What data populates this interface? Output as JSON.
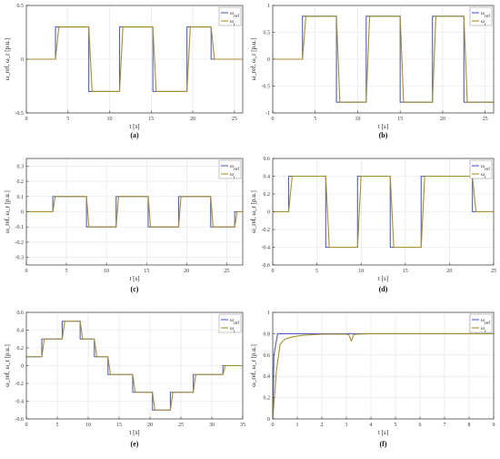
{
  "figure": {
    "subplots": [
      {
        "id": "a",
        "caption": "(a)"
      },
      {
        "id": "b",
        "caption": "(b)"
      },
      {
        "id": "c",
        "caption": "(c)"
      },
      {
        "id": "d",
        "caption": "(d)"
      },
      {
        "id": "e",
        "caption": "(e)"
      },
      {
        "id": "f",
        "caption": "(f)"
      }
    ]
  },
  "colors": {
    "omega_ref": "#4f5fc8",
    "omega_r": "#a88e2c",
    "grid": "#e3e3e3",
    "axis": "#333333"
  },
  "chart_data": [
    {
      "id": "a",
      "type": "line",
      "caption": "(a)",
      "xlabel": "t [s]",
      "ylabel": "ω_ref, ω_r [p.u.]",
      "xlim": [
        0,
        26
      ],
      "ylim": [
        -0.5,
        0.5
      ],
      "xticks": [
        0,
        5,
        10,
        15,
        20,
        25
      ],
      "yticks": [
        -0.5,
        0,
        0.5
      ],
      "grid": true,
      "legend_position": "top-right",
      "series": [
        {
          "name": "ω_ref",
          "x": [
            0,
            3.5,
            3.5,
            7.5,
            7.5,
            11.2,
            11.2,
            15.2,
            15.2,
            19.3,
            19.3,
            22.2,
            22.2,
            26
          ],
          "values": [
            0,
            0,
            0.3,
            0.3,
            -0.3,
            -0.3,
            0.3,
            0.3,
            -0.3,
            -0.3,
            0.3,
            0.3,
            0,
            0
          ]
        },
        {
          "name": "ω_r",
          "x": [
            0,
            3.5,
            3.9,
            7.5,
            7.9,
            11.2,
            11.6,
            15.2,
            15.6,
            19.3,
            19.7,
            22.2,
            22.6,
            26
          ],
          "values": [
            0,
            0,
            0.3,
            0.3,
            -0.3,
            -0.3,
            0.3,
            0.3,
            -0.3,
            -0.3,
            0.3,
            0.3,
            0,
            0
          ]
        }
      ]
    },
    {
      "id": "b",
      "type": "line",
      "caption": "(b)",
      "xlabel": "t [s]",
      "ylabel": "ω_ref, ω_r [p.u.]",
      "xlim": [
        0,
        26
      ],
      "ylim": [
        -1,
        1
      ],
      "xticks": [
        0,
        5,
        10,
        15,
        20,
        25
      ],
      "yticks": [
        -1,
        -0.5,
        0,
        0.5,
        1
      ],
      "grid": true,
      "legend_position": "top-right",
      "series": [
        {
          "name": "ω_ref",
          "x": [
            0,
            3.5,
            3.5,
            7.5,
            7.5,
            11,
            11,
            15,
            15,
            18.8,
            18.8,
            22.5,
            22.5,
            26
          ],
          "values": [
            0,
            0,
            0.8,
            0.8,
            -0.8,
            -0.8,
            0.8,
            0.8,
            -0.8,
            -0.8,
            0.8,
            0.8,
            -0.8,
            -0.8
          ]
        },
        {
          "name": "ω_r",
          "x": [
            0,
            3.5,
            3.9,
            7.5,
            7.9,
            11,
            11.4,
            15,
            15.4,
            18.8,
            19.2,
            22.5,
            22.9,
            26
          ],
          "values": [
            0,
            0,
            0.8,
            0.8,
            -0.8,
            -0.8,
            0.8,
            0.8,
            -0.8,
            -0.8,
            0.8,
            0.8,
            -0.8,
            -0.8
          ]
        }
      ]
    },
    {
      "id": "c",
      "type": "line",
      "caption": "(c)",
      "xlabel": "t [s]",
      "ylabel": "ω_ref, ω_r [p.u.]",
      "xlim": [
        0,
        27
      ],
      "ylim": [
        -0.35,
        0.35
      ],
      "xticks": [
        0,
        5,
        10,
        15,
        20,
        25
      ],
      "yticks": [
        -0.3,
        -0.2,
        -0.1,
        0,
        0.1,
        0.2,
        0.3
      ],
      "grid": true,
      "legend_position": "top-right",
      "series": [
        {
          "name": "ω_ref",
          "x": [
            0,
            3.3,
            3.3,
            7.5,
            7.5,
            11.2,
            11.2,
            15.2,
            15.2,
            19,
            19,
            23,
            23,
            26,
            26,
            27
          ],
          "values": [
            0,
            0,
            0.1,
            0.1,
            -0.1,
            -0.1,
            0.1,
            0.1,
            -0.1,
            -0.1,
            0.1,
            0.1,
            -0.1,
            -0.1,
            0,
            0
          ]
        },
        {
          "name": "ω_r",
          "x": [
            0,
            3.3,
            3.6,
            7.5,
            7.8,
            11.2,
            11.5,
            15.2,
            15.5,
            19,
            19.3,
            23,
            23.3,
            26,
            26.3,
            27
          ],
          "values": [
            0,
            0,
            0.1,
            0.1,
            -0.1,
            -0.1,
            0.1,
            0.1,
            -0.1,
            -0.1,
            0.1,
            0.1,
            -0.1,
            -0.1,
            0,
            0
          ]
        }
      ]
    },
    {
      "id": "d",
      "type": "line",
      "caption": "(d)",
      "xlabel": "t [s]",
      "ylabel": "ω_ref, ω_r [p.u.]",
      "xlim": [
        0,
        25
      ],
      "ylim": [
        -0.6,
        0.6
      ],
      "xticks": [
        0,
        5,
        10,
        15,
        20,
        25
      ],
      "yticks": [
        -0.6,
        -0.4,
        -0.2,
        0,
        0.2,
        0.4,
        0.6
      ],
      "grid": true,
      "legend_position": "top-right",
      "series": [
        {
          "name": "ω_ref",
          "x": [
            0,
            1.8,
            1.8,
            6,
            6,
            9.6,
            9.6,
            13.3,
            13.3,
            16.8,
            16.8,
            22.6,
            22.6,
            25
          ],
          "values": [
            0,
            0,
            0.4,
            0.4,
            -0.4,
            -0.4,
            0.4,
            0.4,
            -0.4,
            -0.4,
            0.4,
            0.4,
            0,
            0
          ]
        },
        {
          "name": "ω_r",
          "x": [
            0,
            1.8,
            2.2,
            6,
            6.4,
            9.6,
            10,
            13.3,
            13.7,
            16.8,
            17.2,
            22.6,
            23,
            25
          ],
          "values": [
            0,
            0,
            0.4,
            0.4,
            -0.4,
            -0.4,
            0.4,
            0.4,
            -0.4,
            -0.4,
            0.4,
            0.4,
            0,
            0
          ]
        }
      ]
    },
    {
      "id": "e",
      "type": "line",
      "caption": "(e)",
      "xlabel": "t [s]",
      "ylabel": "ω_ref, ω_r [p.u.]",
      "xlim": [
        0,
        35
      ],
      "ylim": [
        -0.6,
        0.6
      ],
      "xticks": [
        0,
        5,
        10,
        15,
        20,
        25,
        30,
        35
      ],
      "yticks": [
        -0.6,
        -0.4,
        -0.2,
        0,
        0.2,
        0.4,
        0.6
      ],
      "grid": true,
      "legend_position": "top-right",
      "series": [
        {
          "name": "ω_ref",
          "x": [
            0,
            2.5,
            2.5,
            5.8,
            5.8,
            8.7,
            8.7,
            11,
            11,
            13.2,
            13.2,
            17.2,
            17.2,
            20.4,
            20.4,
            23.3,
            23.3,
            27,
            27,
            31.8,
            31.8,
            35
          ],
          "values": [
            0.1,
            0.1,
            0.3,
            0.3,
            0.5,
            0.5,
            0.3,
            0.3,
            0.1,
            0.1,
            -0.1,
            -0.1,
            -0.3,
            -0.3,
            -0.5,
            -0.5,
            -0.3,
            -0.3,
            -0.1,
            -0.1,
            0,
            0
          ]
        },
        {
          "name": "ω_r",
          "x": [
            0,
            2.5,
            2.9,
            5.8,
            6.2,
            8.7,
            9.1,
            11,
            11.4,
            13.2,
            13.6,
            17.2,
            17.6,
            20.4,
            20.8,
            23.3,
            23.7,
            27,
            27.4,
            31.8,
            32.2,
            35
          ],
          "values": [
            0.1,
            0.1,
            0.3,
            0.3,
            0.5,
            0.5,
            0.3,
            0.3,
            0.1,
            0.1,
            -0.1,
            -0.1,
            -0.3,
            -0.3,
            -0.5,
            -0.5,
            -0.3,
            -0.3,
            -0.1,
            -0.1,
            0,
            0
          ]
        }
      ]
    },
    {
      "id": "f",
      "type": "line",
      "caption": "(f)",
      "xlabel": "t [s]",
      "ylabel": "ω_ref, ω_r [p.u.]",
      "xlim": [
        0,
        9
      ],
      "ylim": [
        0,
        1
      ],
      "xticks": [
        0,
        1,
        2,
        3,
        4,
        5,
        6,
        7,
        8,
        9
      ],
      "yticks": [
        0,
        0.2,
        0.4,
        0.6,
        0.8,
        1
      ],
      "grid": true,
      "legend_position": "top-right",
      "series": [
        {
          "name": "ω_ref",
          "x": [
            0,
            0.05,
            0.2,
            9
          ],
          "values": [
            0,
            0.6,
            0.8,
            0.8
          ]
        },
        {
          "name": "ω_r",
          "x": [
            0,
            0.15,
            0.3,
            0.5,
            0.8,
            1.2,
            1.6,
            2,
            3,
            3.1,
            3.2,
            3.3,
            3.4,
            4,
            5,
            6,
            7,
            8,
            9
          ],
          "values": [
            0,
            0.45,
            0.7,
            0.75,
            0.77,
            0.785,
            0.79,
            0.795,
            0.795,
            0.79,
            0.73,
            0.79,
            0.795,
            0.8,
            0.8,
            0.8,
            0.8,
            0.8,
            0.8
          ]
        }
      ]
    }
  ]
}
